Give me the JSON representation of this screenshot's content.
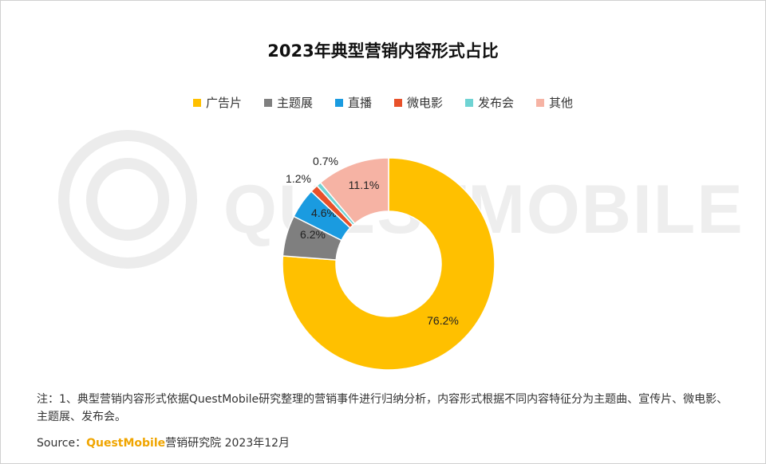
{
  "chart_data": {
    "type": "pie",
    "donut": true,
    "title": "2023年典型营销内容形式占比",
    "slices": [
      {
        "label": "广告片",
        "value": 76.2,
        "display": "76.2%",
        "color": "#FFC000"
      },
      {
        "label": "主题展",
        "value": 6.2,
        "display": "6.2%",
        "color": "#7F7F7F"
      },
      {
        "label": "直播",
        "value": 4.6,
        "display": "4.6%",
        "color": "#1A9BE0"
      },
      {
        "label": "微电影",
        "value": 1.2,
        "display": "1.2%",
        "color": "#E8512A"
      },
      {
        "label": "发布会",
        "value": 0.7,
        "display": "0.7%",
        "color": "#6FD3D3"
      },
      {
        "label": "其他",
        "value": 11.1,
        "display": "11.1%",
        "color": "#F6B3A4"
      }
    ],
    "legend_position": "top"
  },
  "watermark_text": "QUESTMOBILE",
  "note": "注：1、典型营销内容形式依据QuestMobile研究整理的营销事件进行归纳分析，内容形式根据不同内容特征分为主题曲、宣传片、微电影、主题展、发布会。",
  "source": {
    "prefix": "Source：",
    "brand": "QuestMobile",
    "suffix": "营销研究院 2023年12月"
  }
}
